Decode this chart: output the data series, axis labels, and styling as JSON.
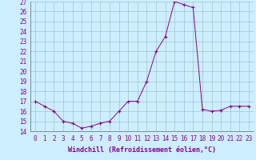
{
  "x": [
    0,
    1,
    2,
    3,
    4,
    5,
    6,
    7,
    8,
    9,
    10,
    11,
    12,
    13,
    14,
    15,
    16,
    17,
    18,
    19,
    20,
    21,
    22,
    23
  ],
  "y": [
    17.0,
    16.5,
    16.0,
    15.0,
    14.8,
    14.3,
    14.5,
    14.8,
    15.0,
    16.0,
    17.0,
    17.0,
    19.0,
    22.0,
    23.5,
    27.0,
    26.7,
    26.4,
    16.2,
    16.0,
    16.1,
    16.5,
    16.5,
    16.5
  ],
  "xlabel": "Windchill (Refroidissement éolien,°C)",
  "ylim": [
    14,
    27
  ],
  "xlim": [
    -0.5,
    23.5
  ],
  "yticks": [
    14,
    15,
    16,
    17,
    18,
    19,
    20,
    21,
    22,
    23,
    24,
    25,
    26,
    27
  ],
  "xticks": [
    0,
    1,
    2,
    3,
    4,
    5,
    6,
    7,
    8,
    9,
    10,
    11,
    12,
    13,
    14,
    15,
    16,
    17,
    18,
    19,
    20,
    21,
    22,
    23
  ],
  "line_color": "#880088",
  "bg_color": "#cceeff",
  "grid_color": "#99bbbb",
  "font_color": "#880088",
  "tick_fontsize": 5.5,
  "xlabel_fontsize": 6.0
}
